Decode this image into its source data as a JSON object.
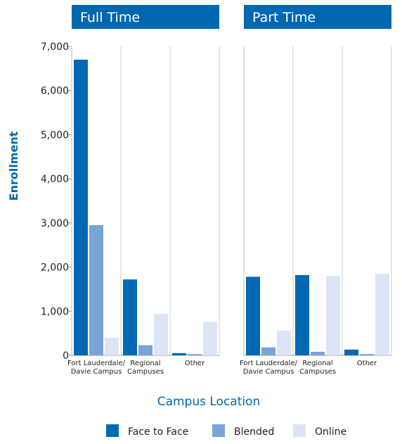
{
  "chart_data": [
    {
      "type": "bar",
      "title": "Full Time",
      "ylabel": "Enrollment",
      "xlabel": "Campus Location",
      "categories": [
        "Fort Lauderdale/\nDavie Campus",
        "Regional\nCampuses",
        "Other"
      ],
      "series": [
        {
          "name": "Face to Face",
          "color": "#0069b4",
          "values": [
            6700,
            1720,
            50
          ]
        },
        {
          "name": "Blended",
          "color": "#7aa3d6",
          "values": [
            2950,
            230,
            30
          ]
        },
        {
          "name": "Online",
          "color": "#dce4f5",
          "values": [
            400,
            940,
            760
          ]
        }
      ],
      "ylim": [
        0,
        7000
      ],
      "yticks": [
        0,
        {
          "value": 1000,
          "label": "1,000"
        },
        {
          "value": 2000,
          "label": "2,000"
        },
        {
          "value": 3000,
          "label": "3,000"
        },
        {
          "value": 4000,
          "label": "4,000"
        },
        {
          "value": 5000,
          "label": "5,000"
        },
        {
          "value": 6000,
          "label": "6,000"
        },
        {
          "value": 7000,
          "label": "7,000"
        }
      ]
    },
    {
      "type": "bar",
      "title": "Part Time",
      "categories": [
        "Fort Lauderdale/\nDavie Campus",
        "Regional\nCampuses",
        "Other"
      ],
      "series": [
        {
          "color": "#0069b4",
          "values": [
            1780,
            1820,
            130
          ]
        },
        {
          "color": "#7aa3d6",
          "values": [
            180,
            80,
            30
          ]
        },
        {
          "color": "#dce4f5",
          "values": [
            560,
            1800,
            1850
          ]
        }
      ],
      "ylim": [
        0,
        7000
      ]
    }
  ]
}
